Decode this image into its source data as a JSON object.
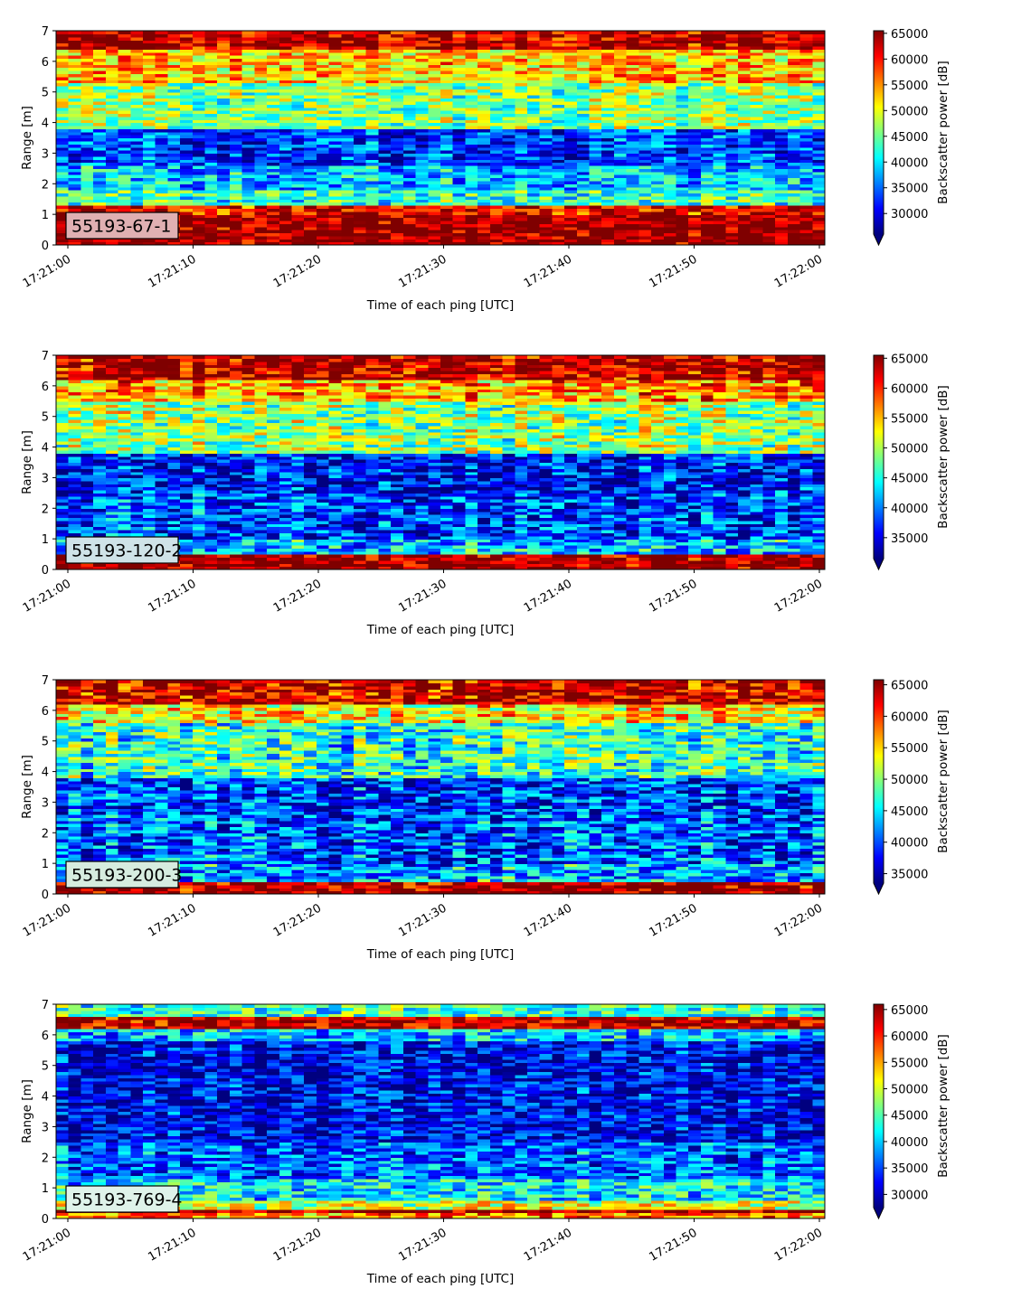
{
  "colormap": [
    "#00007f",
    "#0000ff",
    "#007fff",
    "#00ffff",
    "#7fff7f",
    "#ffff00",
    "#ff7f00",
    "#ff0000",
    "#7f0000"
  ],
  "chart_data": [
    {
      "type": "heatmap",
      "label": "55193-67-1",
      "label_box_color": "#e0b0b2",
      "xlabel": "Time of each ping [UTC]",
      "ylabel": "Range [m]",
      "colorbar_label": "Backscatter power [dB]",
      "xticks": [
        "17:21:00",
        "17:21:10",
        "17:21:20",
        "17:21:30",
        "17:21:40",
        "17:21:50",
        "17:22:00"
      ],
      "yticks": [
        "0",
        "1",
        "2",
        "3",
        "4",
        "5",
        "6",
        "7"
      ],
      "xlim_seconds": [
        0,
        60
      ],
      "ylim": [
        0,
        7
      ],
      "colorbar_ticks": [
        30000,
        35000,
        40000,
        45000,
        50000,
        55000,
        60000,
        65000
      ],
      "vmin": 26000,
      "vmax": 65500,
      "colorbar_extend": "min",
      "bands": [
        {
          "range": [
            0.0,
            0.3
          ],
          "value": 65500
        },
        {
          "range": [
            0.3,
            1.0
          ],
          "value": 65000
        },
        {
          "range": [
            1.0,
            1.3
          ],
          "value": 61000
        },
        {
          "range": [
            1.3,
            1.8
          ],
          "value": 43000
        },
        {
          "range": [
            1.8,
            2.6
          ],
          "value": 38000
        },
        {
          "range": [
            2.6,
            3.8
          ],
          "value": 33000
        },
        {
          "range": [
            3.8,
            5.3
          ],
          "value": 46000
        },
        {
          "range": [
            5.3,
            6.4
          ],
          "value": 53000
        },
        {
          "range": [
            6.4,
            7.0
          ],
          "value": 63000
        }
      ]
    },
    {
      "type": "heatmap",
      "label": "55193-120-2",
      "label_box_color": "#cfe3e8",
      "xlabel": "Time of each ping [UTC]",
      "ylabel": "Range [m]",
      "colorbar_label": "Backscatter power [dB]",
      "xticks": [
        "17:21:00",
        "17:21:10",
        "17:21:20",
        "17:21:30",
        "17:21:40",
        "17:21:50",
        "17:22:00"
      ],
      "yticks": [
        "0",
        "1",
        "2",
        "3",
        "4",
        "5",
        "6",
        "7"
      ],
      "xlim_seconds": [
        0,
        60
      ],
      "ylim": [
        0,
        7
      ],
      "colorbar_ticks": [
        35000,
        40000,
        45000,
        50000,
        55000,
        60000,
        65000
      ],
      "vmin": 31500,
      "vmax": 65500,
      "colorbar_extend": "min",
      "bands": [
        {
          "range": [
            0.0,
            0.5
          ],
          "value": 65500
        },
        {
          "range": [
            0.5,
            1.0
          ],
          "value": 42000
        },
        {
          "range": [
            1.0,
            2.5
          ],
          "value": 38000
        },
        {
          "range": [
            2.5,
            3.8
          ],
          "value": 36000
        },
        {
          "range": [
            3.8,
            5.5
          ],
          "value": 49000
        },
        {
          "range": [
            5.5,
            6.2
          ],
          "value": 56000
        },
        {
          "range": [
            6.2,
            7.0
          ],
          "value": 63500
        }
      ]
    },
    {
      "type": "heatmap",
      "label": "55193-200-3",
      "label_box_color": "#d6ecdf",
      "xlabel": "Time of each ping [UTC]",
      "ylabel": "Range [m]",
      "colorbar_label": "Backscatter power [dB]",
      "xticks": [
        "17:21:00",
        "17:21:10",
        "17:21:20",
        "17:21:30",
        "17:21:40",
        "17:21:50",
        "17:22:00"
      ],
      "yticks": [
        "0",
        "1",
        "2",
        "3",
        "4",
        "5",
        "6",
        "7"
      ],
      "xlim_seconds": [
        0,
        60
      ],
      "ylim": [
        0,
        7
      ],
      "colorbar_ticks": [
        35000,
        40000,
        45000,
        50000,
        55000,
        60000,
        65000
      ],
      "vmin": 33500,
      "vmax": 65800,
      "colorbar_extend": "min",
      "bands": [
        {
          "range": [
            0.0,
            0.4
          ],
          "value": 65500
        },
        {
          "range": [
            0.4,
            1.0
          ],
          "value": 43000
        },
        {
          "range": [
            1.0,
            2.6
          ],
          "value": 40000
        },
        {
          "range": [
            2.6,
            3.8
          ],
          "value": 39000
        },
        {
          "range": [
            3.8,
            5.6
          ],
          "value": 47000
        },
        {
          "range": [
            5.6,
            6.2
          ],
          "value": 54000
        },
        {
          "range": [
            6.2,
            7.0
          ],
          "value": 63000
        }
      ]
    },
    {
      "type": "heatmap",
      "label": "55193-769-4",
      "label_box_color": "#dff3ea",
      "xlabel": "Time of each ping [UTC]",
      "ylabel": "Range [m]",
      "colorbar_label": "Backscatter power [dB]",
      "xticks": [
        "17:21:00",
        "17:21:10",
        "17:21:20",
        "17:21:30",
        "17:21:40",
        "17:21:50",
        "17:22:00"
      ],
      "yticks": [
        "0",
        "1",
        "2",
        "3",
        "4",
        "5",
        "6",
        "7"
      ],
      "xlim_seconds": [
        0,
        60
      ],
      "ylim": [
        0,
        7
      ],
      "colorbar_ticks": [
        30000,
        35000,
        40000,
        45000,
        50000,
        55000,
        60000,
        65000
      ],
      "vmin": 27500,
      "vmax": 66000,
      "colorbar_extend": "min",
      "bands": [
        {
          "range": [
            0.0,
            0.2
          ],
          "value": 56000
        },
        {
          "range": [
            0.2,
            0.35
          ],
          "value": 65500
        },
        {
          "range": [
            0.35,
            0.6
          ],
          "value": 50000
        },
        {
          "range": [
            0.6,
            1.3
          ],
          "value": 41000
        },
        {
          "range": [
            1.3,
            2.5
          ],
          "value": 36000
        },
        {
          "range": [
            2.5,
            5.8
          ],
          "value": 32000
        },
        {
          "range": [
            5.8,
            6.2
          ],
          "value": 40000
        },
        {
          "range": [
            6.2,
            6.6
          ],
          "value": 64000
        },
        {
          "range": [
            6.6,
            7.0
          ],
          "value": 44000
        }
      ]
    }
  ]
}
